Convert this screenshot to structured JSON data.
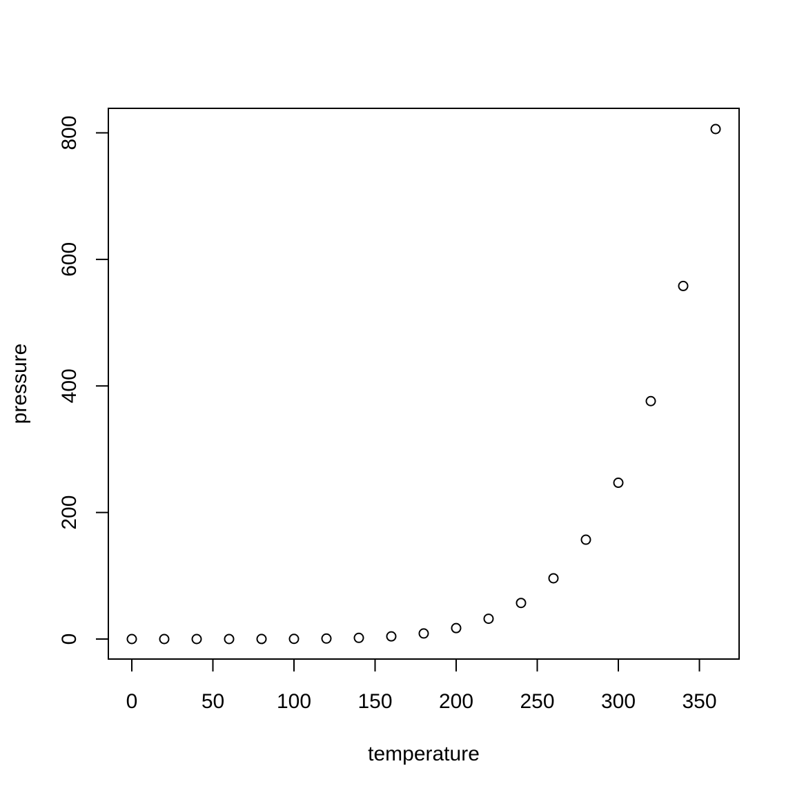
{
  "chart_data": {
    "type": "scatter",
    "title": "",
    "xlabel": "temperature",
    "ylabel": "pressure",
    "xlim": [
      0,
      360
    ],
    "ylim": [
      0,
      806
    ],
    "x_ticks": [
      0,
      50,
      100,
      150,
      200,
      250,
      300,
      350
    ],
    "y_ticks": [
      0,
      200,
      400,
      600,
      800
    ],
    "grid": false,
    "legend": "none",
    "point_style": "open-circle",
    "colors": {
      "points": "#000000",
      "axis": "#000000",
      "background": "#ffffff"
    },
    "x": [
      0,
      20,
      40,
      60,
      80,
      100,
      120,
      140,
      160,
      180,
      200,
      220,
      240,
      260,
      280,
      300,
      320,
      340,
      360
    ],
    "y": [
      0.0002,
      0.0012,
      0.006,
      0.03,
      0.09,
      0.27,
      0.75,
      1.85,
      4.2,
      8.8,
      17.3,
      32.1,
      57,
      96,
      157,
      247,
      376,
      558,
      806
    ]
  }
}
